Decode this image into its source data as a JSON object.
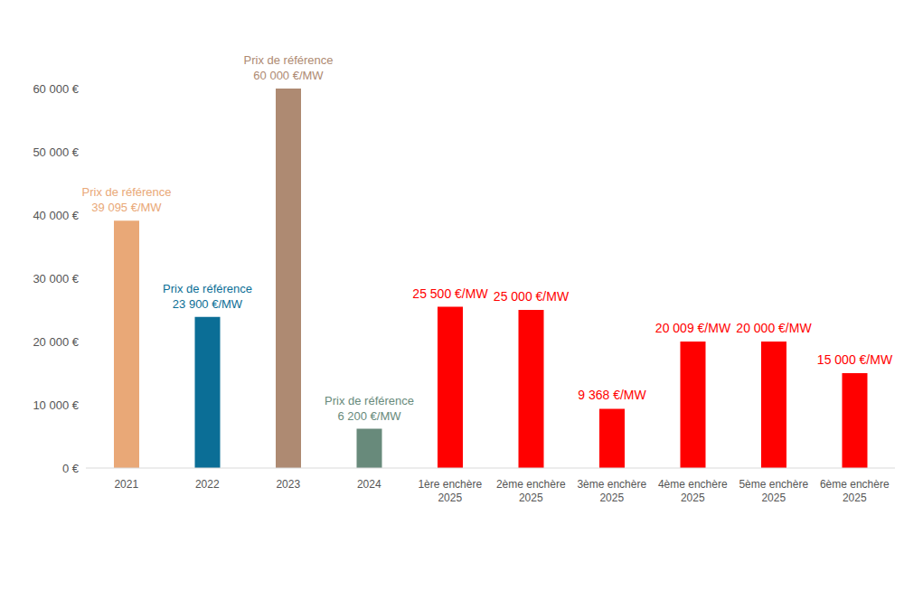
{
  "chart_data": {
    "type": "bar",
    "categories": [
      "2021",
      "2022",
      "2023",
      "2024",
      "1ère enchère 2025",
      "2ème enchère 2025",
      "3ème enchère 2025",
      "4ème enchère 2025",
      "5ème enchère 2025",
      "6ème enchère 2025"
    ],
    "values": [
      39095,
      23900,
      60000,
      6200,
      25500,
      25000,
      9368,
      20009,
      20000,
      15000
    ],
    "value_labels": [
      "Prix de référence 39 095 €/MW",
      "Prix de référence 23 900 €/MW",
      "Prix de référence 60 000 €/MW",
      "Prix de référence 6 200 €/MW",
      "25 500 €/MW",
      "25 000 €/MW",
      "9 368 €/MW",
      "20 009 €/MW",
      "20 000 €/MW",
      "15 000 €/MW"
    ],
    "colors": [
      "#e9a877",
      "#0b6e96",
      "#ae8a72",
      "#688a7b",
      "#ff0000",
      "#ff0000",
      "#ff0000",
      "#ff0000",
      "#ff0000",
      "#ff0000"
    ],
    "ylim": [
      0,
      60000
    ],
    "yticks": [
      {
        "value": 0,
        "label": "0 €"
      },
      {
        "value": 10000,
        "label": "10 000 €"
      },
      {
        "value": 20000,
        "label": "20 000 €"
      },
      {
        "value": 30000,
        "label": "30 000 €"
      },
      {
        "value": 40000,
        "label": "40 000 €"
      },
      {
        "value": 50000,
        "label": "50 000 €"
      },
      {
        "value": 60000,
        "label": "60 000 €"
      }
    ],
    "data_labels": true,
    "grid": false
  }
}
